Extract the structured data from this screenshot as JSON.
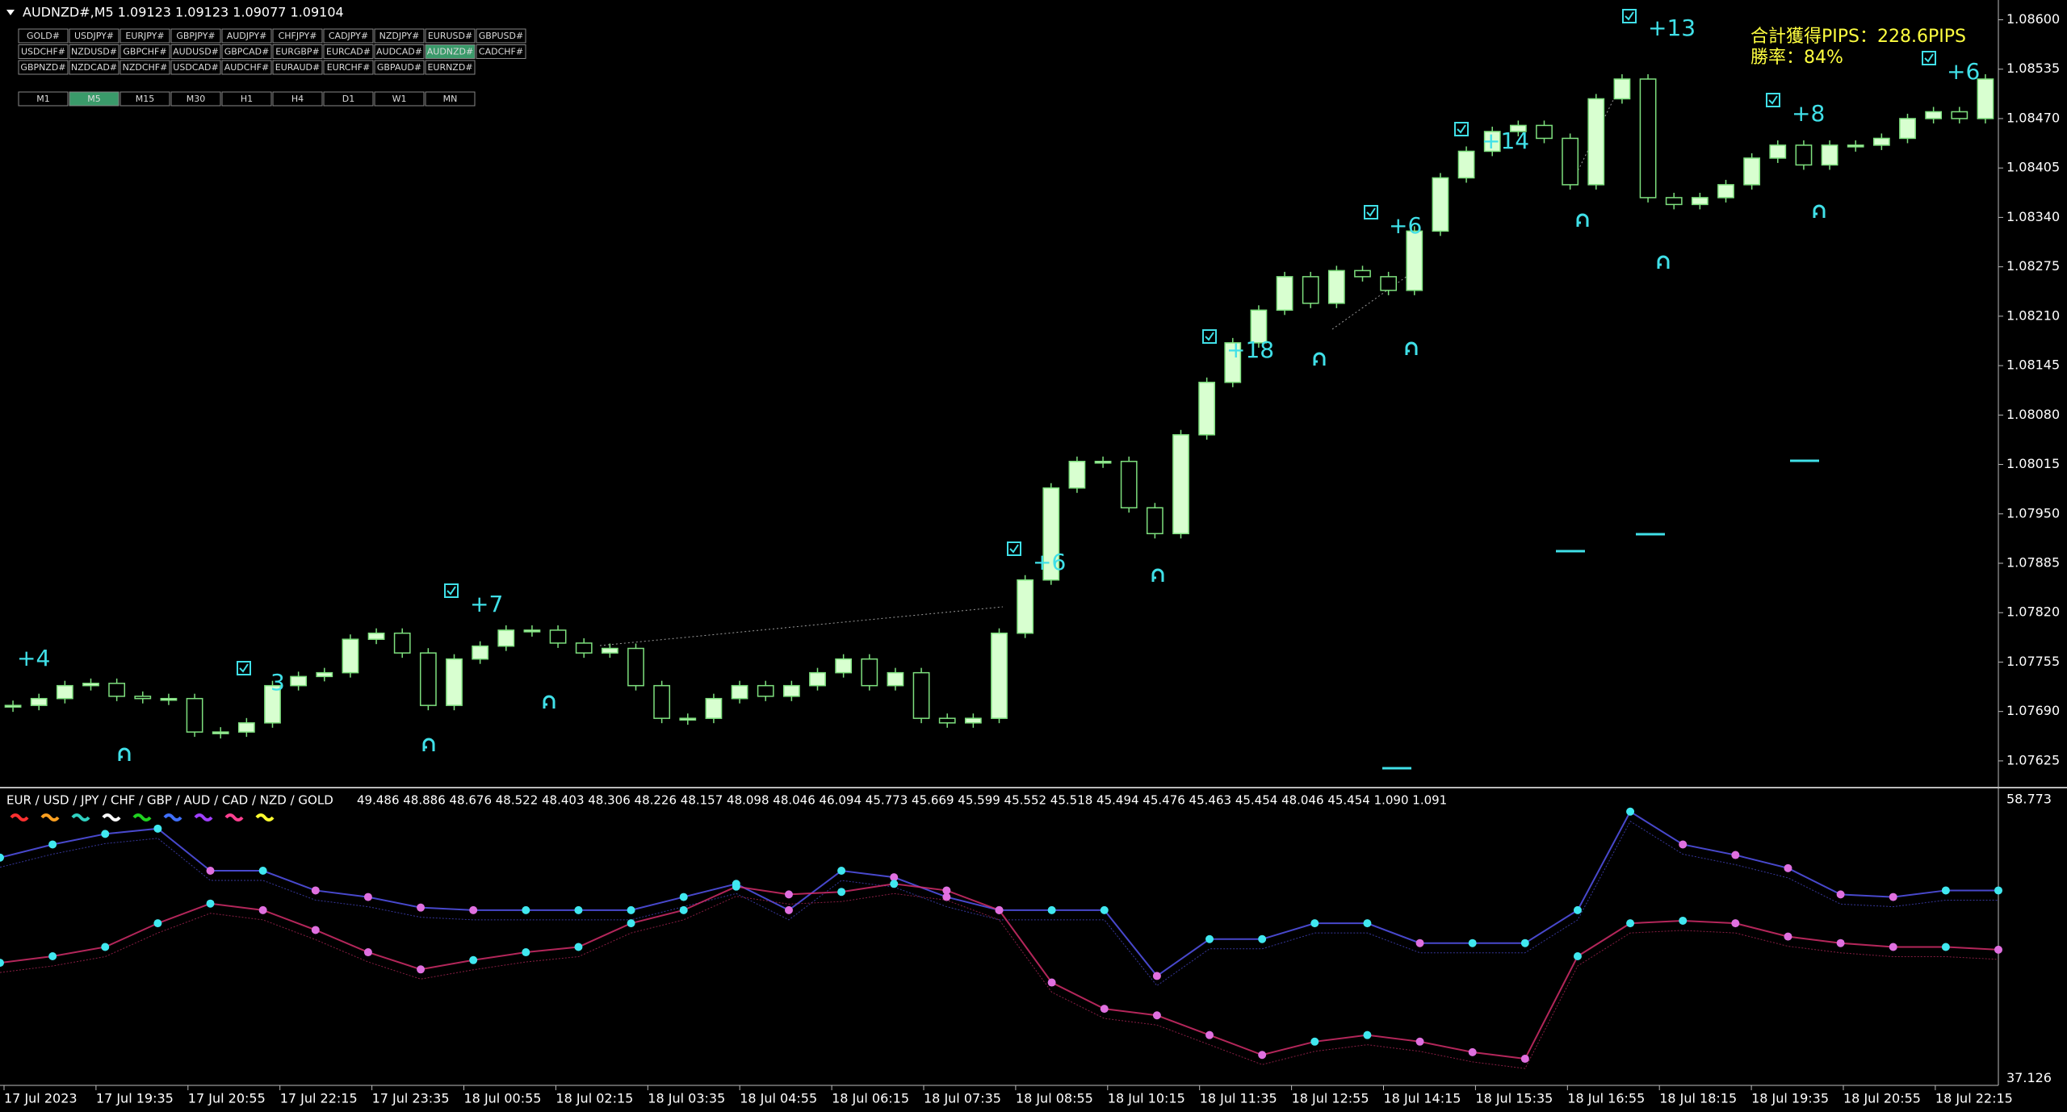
{
  "header": {
    "title": "AUDNZD#,M5  1.09123 1.09123 1.09077 1.09104"
  },
  "symbols": [
    [
      "GOLD#",
      "USDJPY#",
      "EURJPY#",
      "GBPJPY#",
      "AUDJPY#",
      "CHFJPY#",
      "CADJPY#",
      "NZDJPY#",
      "EURUSD#",
      "GBPUSD#"
    ],
    [
      "USDCHF#",
      "NZDUSD#",
      "GBPCHF#",
      "AUDUSD#",
      "GBPCAD#",
      "EURGBP#",
      "EURCAD#",
      "AUDCAD#",
      "AUDNZD#",
      "CADCHF#"
    ],
    [
      "GBPNZD#",
      "NZDCAD#",
      "NZDCHF#",
      "USDCAD#",
      "AUDCHF#",
      "EURAUD#",
      "EURCHF#",
      "GBPAUD#",
      "EURNZD#"
    ]
  ],
  "active_symbol": "AUDNZD#",
  "timeframes": [
    "M1",
    "M5",
    "M15",
    "M30",
    "H1",
    "H4",
    "D1",
    "W1",
    "MN"
  ],
  "active_timeframe": "M5",
  "main_chart": {
    "type": "candlestick",
    "color_up": "#d8ffd0",
    "color_line": "#7ee07e",
    "ylim": [
      1.07592,
      1.08626
    ],
    "yticks": [
      {
        "value": 1.086,
        "label": "1.08600"
      },
      1.08535,
      {
        "value": 1.0847,
        "label": "1.08470"
      },
      1.08405,
      {
        "value": 1.0834,
        "label": "1.08340"
      },
      1.08275,
      {
        "value": 1.0821,
        "label": "1.08210"
      },
      1.08145,
      {
        "value": 1.0808,
        "label": "1.08080"
      },
      1.08015,
      {
        "value": 1.0795,
        "label": "1.07950"
      },
      1.07885,
      {
        "value": 1.0782,
        "label": "1.07820"
      },
      1.07755,
      {
        "value": 1.0769,
        "label": "1.07690"
      },
      1.07625
    ],
    "closes": [
      1.07698,
      1.07707,
      1.07724,
      1.07727,
      1.0771,
      1.07707,
      1.07707,
      1.07663,
      1.07663,
      1.07675,
      1.07724,
      1.07736,
      1.07741,
      1.07785,
      1.07793,
      1.07767,
      1.07698,
      1.07759,
      1.07776,
      1.07797,
      1.07797,
      1.0778,
      1.07767,
      1.07773,
      1.07724,
      1.07681,
      1.07681,
      1.07707,
      1.07724,
      1.0771,
      1.07724,
      1.07741,
      1.07759,
      1.07724,
      1.07741,
      1.07681,
      1.07675,
      1.07681,
      1.07793,
      1.07863,
      1.07984,
      1.08019,
      1.08019,
      1.07958,
      1.07924,
      1.08054,
      1.08123,
      1.08175,
      1.08218,
      1.08262,
      1.08227,
      1.0827,
      1.08262,
      1.08244,
      1.08322,
      1.08392,
      1.08427,
      1.08453,
      1.08461,
      1.08444,
      1.08383,
      1.08496,
      1.08522,
      1.08366,
      1.08357,
      1.08366,
      1.08383,
      1.08418,
      1.08435,
      1.08409,
      1.08435,
      1.08435,
      1.08444,
      1.0847,
      1.08479,
      1.0847,
      1.08522
    ],
    "trades": [
      "+4",
      "3",
      "+7",
      "+6",
      "+18",
      "+6",
      "+14",
      "+13",
      "+8",
      "+6"
    ],
    "summary": [
      "合計獲得PIPS：228.6PIPS",
      "勝率：84%"
    ]
  },
  "indicator": {
    "type": "line",
    "legend": "EUR / USD / JPY / CHF / GBP / AUD / CAD / NZD / GOLD",
    "legend_colors": [
      "#ff3030",
      "#ffa020",
      "#30d0c0",
      "#ffffff",
      "#20d020",
      "#4070ff",
      "#a040ff",
      "#ff4090",
      "#ffff30"
    ],
    "readout": "49.486 48.886 48.676 48.522 48.403 48.306 48.226 48.157 48.098 48.046 46.094 45.773 45.669 45.599 45.552 45.518 45.494 45.476 45.463 45.454 48.046 45.454 1.090 1.091",
    "ylim": [
      36.72,
      59.59
    ],
    "yticks": [
      58.773,
      37.126
    ],
    "rise_color": "#40e8f0",
    "fall_color": "#e070e0",
    "series": [
      {
        "color": "#5a5aff",
        "values": [
          54.28,
          55.3,
          56.12,
          56.53,
          53.26,
          53.26,
          51.73,
          51.22,
          50.4,
          50.2,
          50.2,
          50.2,
          50.2,
          51.22,
          52.24,
          50.2,
          53.26,
          52.75,
          51.22,
          50.2,
          50.2,
          50.2,
          45.09,
          47.95,
          47.95,
          49.18,
          49.18,
          47.64,
          47.64,
          47.64,
          50.2,
          57.85,
          55.3,
          54.48,
          53.46,
          51.42,
          51.22,
          51.73,
          51.73
        ]
      },
      {
        "color": "#e03070",
        "values": [
          46.11,
          46.62,
          47.34,
          49.18,
          50.71,
          50.2,
          48.66,
          46.93,
          45.6,
          46.32,
          46.93,
          47.34,
          49.18,
          50.2,
          52.03,
          51.42,
          51.62,
          52.24,
          51.73,
          50.2,
          44.58,
          42.54,
          42.03,
          40.5,
          38.96,
          39.99,
          40.5,
          39.99,
          39.17,
          38.66,
          46.62,
          49.18,
          49.38,
          49.18,
          48.15,
          47.64,
          47.34,
          47.34,
          47.13
        ]
      }
    ]
  },
  "time_axis": [
    "17 Jul 2023",
    "17 Jul 19:35",
    "17 Jul 20:55",
    "17 Jul 22:15",
    "17 Jul 23:35",
    "18 Jul 00:55",
    "18 Jul 02:15",
    "18 Jul 03:35",
    "18 Jul 04:55",
    "18 Jul 06:15",
    "18 Jul 07:35",
    "18 Jul 08:55",
    "18 Jul 10:15",
    "18 Jul 11:35",
    "18 Jul 12:55",
    "18 Jul 14:15",
    "18 Jul 15:35",
    "18 Jul 16:55",
    "18 Jul 18:15",
    "18 Jul 19:35",
    "18 Jul 20:55",
    "18 Jul 22:15"
  ]
}
